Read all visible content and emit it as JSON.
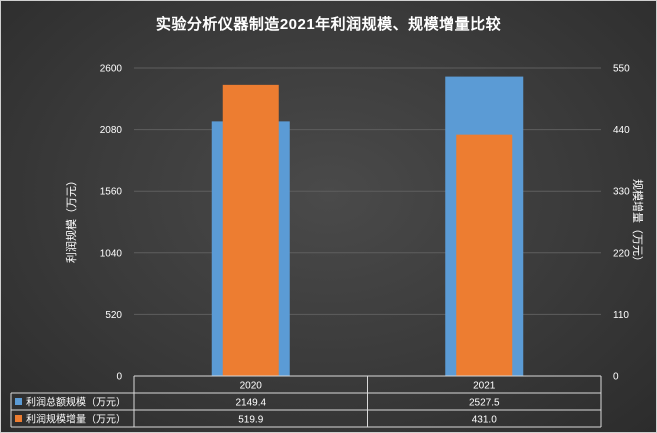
{
  "chart_data": {
    "type": "bar",
    "title": "实验分析仪器制造2021年利润规模、规模增量比较",
    "categories": [
      "2020",
      "2021"
    ],
    "ylabel": "利润规模（万元）",
    "ylabel_right": "规模增量（万元）",
    "ylim": [
      0,
      2600
    ],
    "ylim_right": [
      0,
      550
    ],
    "yticks": [
      "0",
      "520",
      "1040",
      "1560",
      "2080",
      "2600"
    ],
    "yticks_right": [
      "0",
      "110",
      "220",
      "330",
      "440",
      "550"
    ],
    "grid": true,
    "series": [
      {
        "name": "利润总额规模（万元）",
        "axis": "left",
        "color": "#5b9bd5",
        "values": [
          2149.4,
          2527.5
        ],
        "labels": [
          "2149.4",
          "2527.5"
        ]
      },
      {
        "name": "利润规模增量（万元）",
        "axis": "right",
        "color": "#ed7d31",
        "values": [
          519.9,
          431.0
        ],
        "labels": [
          "519.9",
          "431.0"
        ]
      }
    ]
  }
}
